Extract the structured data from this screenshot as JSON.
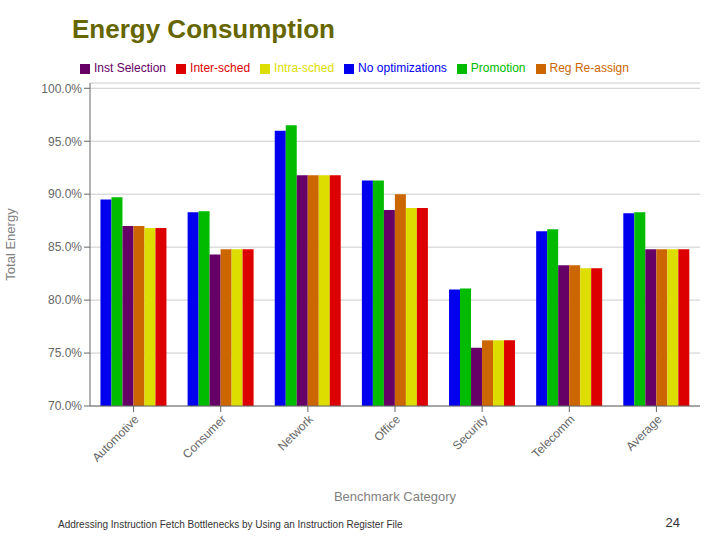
{
  "chart_data": {
    "type": "bar",
    "title": "Energy Consumption",
    "subtitle": "Addressing Instruction Fetch Bottlenecks by Using an Instruction Register File",
    "annotations": [
      "24"
    ],
    "x_label": "Benchmark Category",
    "y_label": "Total Energy",
    "categories": [
      "Automotive",
      "Consumer",
      "Network",
      "Office",
      "Security",
      "Telecomm",
      "Average"
    ],
    "series": [
      {
        "name": "No optimizations",
        "color": "#0000EE",
        "values": [
          89.5,
          88.3,
          96.0,
          91.3,
          81.0,
          86.5,
          88.2
        ]
      },
      {
        "name": "Promotion",
        "color": "#00BB00",
        "values": [
          89.7,
          88.4,
          96.5,
          91.3,
          81.1,
          86.7,
          88.3
        ]
      },
      {
        "name": "Inst Selection",
        "color": "#660066",
        "values": [
          87.0,
          84.3,
          91.8,
          88.5,
          75.5,
          83.3,
          84.8
        ]
      },
      {
        "name": "Reg Re-assign",
        "color": "#CC6600",
        "values": [
          87.0,
          84.8,
          91.8,
          90.0,
          76.2,
          83.3,
          84.8
        ]
      },
      {
        "name": "Intra-sched",
        "color": "#DDDD00",
        "values": [
          86.8,
          84.8,
          91.8,
          88.7,
          76.2,
          83.0,
          84.8
        ]
      },
      {
        "name": "Inter-sched",
        "color": "#DD0000",
        "values": [
          86.8,
          84.8,
          91.8,
          88.7,
          76.2,
          83.0,
          84.8
        ]
      }
    ],
    "ylim": [
      70.0,
      100.5
    ],
    "yticks": [
      {
        "value": 70.0,
        "label": "70.0%"
      },
      {
        "value": 75.0,
        "label": "75.0%"
      },
      {
        "value": 80.0,
        "label": "80.0%"
      },
      {
        "value": 85.0,
        "label": "85.0%"
      },
      {
        "value": 90.0,
        "label": "90.0%"
      },
      {
        "value": 95.0,
        "label": "95.0%"
      },
      {
        "value": 100.0,
        "label": "100.0%"
      }
    ],
    "grid": true,
    "legend": "top left"
  }
}
